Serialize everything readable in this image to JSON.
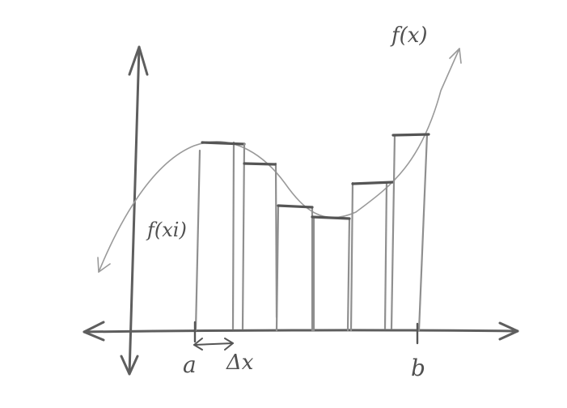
{
  "labels": {
    "function": "f(x)",
    "sample_height": "f(xi)",
    "lower_bound": "a",
    "upper_bound": "b",
    "width": "Δx"
  },
  "colors": {
    "pencil_dark": "#555555",
    "pencil_light": "#9a9a9a",
    "paper": "#ffffff"
  }
}
